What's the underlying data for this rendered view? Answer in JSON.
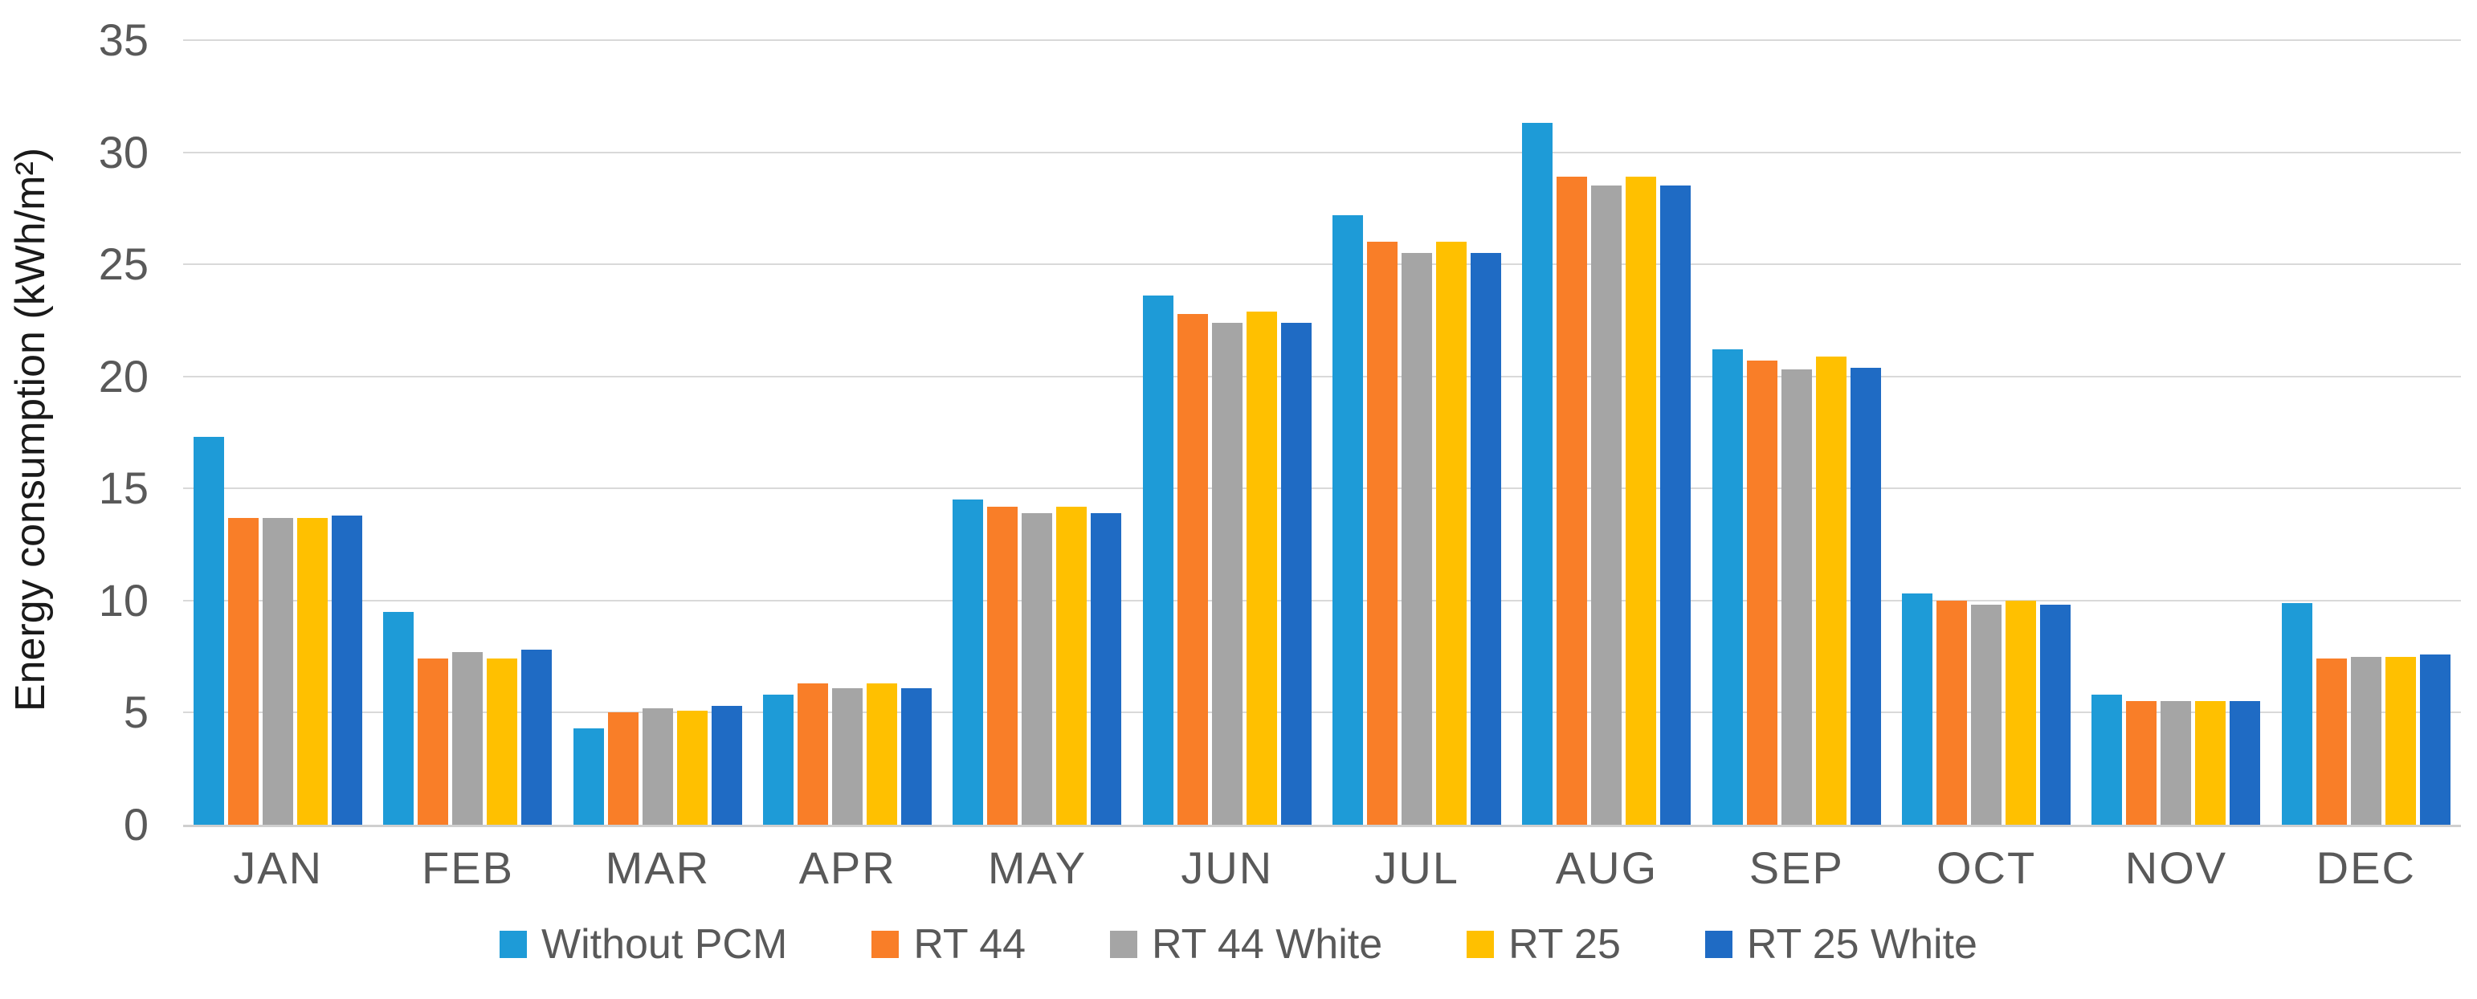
{
  "chart_data": {
    "type": "bar",
    "title": "",
    "xlabel": "",
    "ylabel": "Energy consumption (kWh/m²)",
    "ylim": [
      0,
      35
    ],
    "yticks": [
      0,
      5,
      10,
      15,
      20,
      25,
      30,
      35
    ],
    "grid": "horizontal",
    "legend_position": "bottom",
    "categories": [
      "JAN",
      "FEB",
      "MAR",
      "APR",
      "MAY",
      "JUN",
      "JUL",
      "AUG",
      "SEP",
      "OCT",
      "NOV",
      "DEC"
    ],
    "series": [
      {
        "name": "Without PCM",
        "color": "#1E9BD7",
        "values": [
          17.3,
          9.5,
          4.3,
          5.8,
          14.5,
          23.6,
          27.2,
          31.3,
          21.2,
          10.3,
          5.8,
          9.9
        ]
      },
      {
        "name": "RT 44",
        "color": "#F97E28",
        "values": [
          13.7,
          7.4,
          5.0,
          6.3,
          14.2,
          22.8,
          26.0,
          28.9,
          20.7,
          10.0,
          5.5,
          7.4
        ]
      },
      {
        "name": "RT 44 White",
        "color": "#A5A5A5",
        "values": [
          13.7,
          7.7,
          5.2,
          6.1,
          13.9,
          22.4,
          25.5,
          28.5,
          20.3,
          9.8,
          5.5,
          7.5
        ]
      },
      {
        "name": "RT 25",
        "color": "#FFC000",
        "values": [
          13.7,
          7.4,
          5.1,
          6.3,
          14.2,
          22.9,
          26.0,
          28.9,
          20.9,
          10.0,
          5.5,
          7.5
        ]
      },
      {
        "name": "RT 25 White",
        "color": "#1F6BC4",
        "values": [
          13.8,
          7.8,
          5.3,
          6.1,
          13.9,
          22.4,
          25.5,
          28.5,
          20.4,
          9.8,
          5.5,
          7.6
        ]
      }
    ],
    "colors": {
      "background": "#FFFFFF",
      "gridline": "#D9D9D9",
      "axis_line": "#CFCFCF",
      "tick_text": "#595959",
      "axis_title_text": "#1A1A1A"
    }
  }
}
